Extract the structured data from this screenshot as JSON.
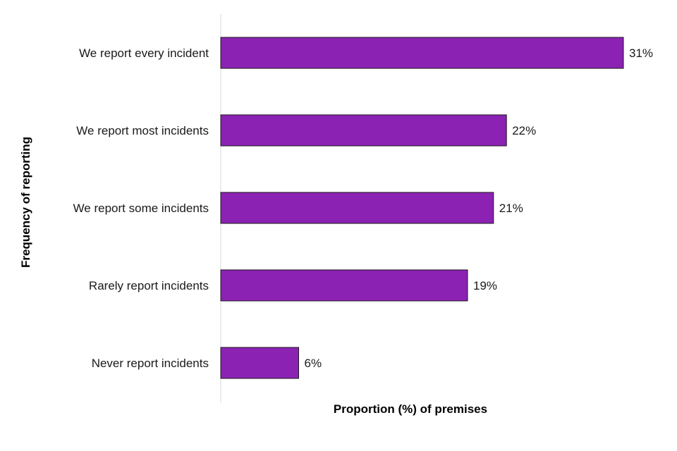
{
  "chart_data": {
    "type": "bar",
    "orientation": "horizontal",
    "categories": [
      "We report every incident",
      "We report most incidents",
      "We report some incidents",
      "Rarely report incidents",
      "Never report incidents"
    ],
    "values": [
      31,
      22,
      21,
      19,
      6
    ],
    "value_labels": [
      "31%",
      "22%",
      "21%",
      "19%",
      "6%"
    ],
    "title": "",
    "xlabel": "Proportion (%) of premises",
    "ylabel": "Frequency of reporting",
    "xlim": [
      0,
      35
    ],
    "grid": false,
    "legend": "none",
    "colors": {
      "bar_fill": "#8b22b3",
      "bar_stroke": "#1a1a1a",
      "axis_line": "#d9d9d9"
    }
  }
}
